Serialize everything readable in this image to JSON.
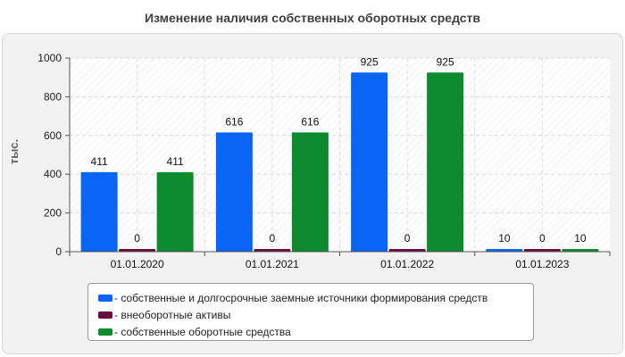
{
  "chart_data": {
    "type": "bar",
    "title": "Изменение наличия собственных оборотных средств",
    "ylabel": "тыс.",
    "xlabel": "",
    "categories": [
      "01.01.2020",
      "01.01.2021",
      "01.01.2022",
      "01.01.2023"
    ],
    "series": [
      {
        "name": "собственные и долгосрочные заемные источники формирования средств",
        "values": [
          411,
          616,
          925,
          10
        ],
        "color": "#0a64f5"
      },
      {
        "name": "внеоборотные активы",
        "values": [
          0,
          0,
          0,
          0
        ],
        "color": "#6b0a3c"
      },
      {
        "name": "собственные оборотные средства",
        "values": [
          411,
          616,
          925,
          10
        ],
        "color": "#0b8a2e"
      }
    ],
    "ylim": [
      0,
      1000
    ],
    "yticks": [
      0,
      200,
      400,
      600,
      800,
      1000
    ],
    "grid": true,
    "legend_position": "bottom"
  },
  "legend_prefix": "- "
}
